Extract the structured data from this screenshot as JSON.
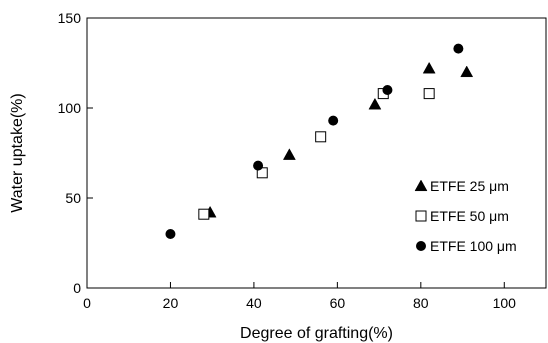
{
  "chart_data": {
    "type": "scatter",
    "xlabel": "Degree of grafting(%)",
    "ylabel": "Water uptake(%)",
    "xlim": [
      0,
      110
    ],
    "ylim": [
      0,
      150
    ],
    "x_ticks": [
      "0",
      "20",
      "40",
      "60",
      "80",
      "100"
    ],
    "x_tick_values": [
      0,
      20,
      40,
      60,
      80,
      100
    ],
    "y_ticks": [
      "0",
      "50",
      "100",
      "150"
    ],
    "y_tick_values": [
      0,
      50,
      100,
      150
    ],
    "legend_position": "lower-right",
    "grid": false,
    "series": [
      {
        "name": "ETFE 25 μm",
        "marker": "filled-triangle",
        "color": "#000000",
        "points": [
          [
            29.5,
            42
          ],
          [
            48.5,
            74
          ],
          [
            69,
            102
          ],
          [
            82,
            122
          ],
          [
            91,
            120
          ]
        ]
      },
      {
        "name": "ETFE 50 μm",
        "marker": "open-square",
        "color": "#000000",
        "points": [
          [
            28,
            41
          ],
          [
            42,
            64
          ],
          [
            56,
            84
          ],
          [
            71,
            108
          ],
          [
            82,
            108
          ]
        ]
      },
      {
        "name": "ETFE 100 μm",
        "marker": "filled-circle",
        "color": "#000000",
        "points": [
          [
            20,
            30
          ],
          [
            41,
            68
          ],
          [
            59,
            93
          ],
          [
            72,
            110
          ],
          [
            89,
            133
          ]
        ]
      }
    ]
  }
}
